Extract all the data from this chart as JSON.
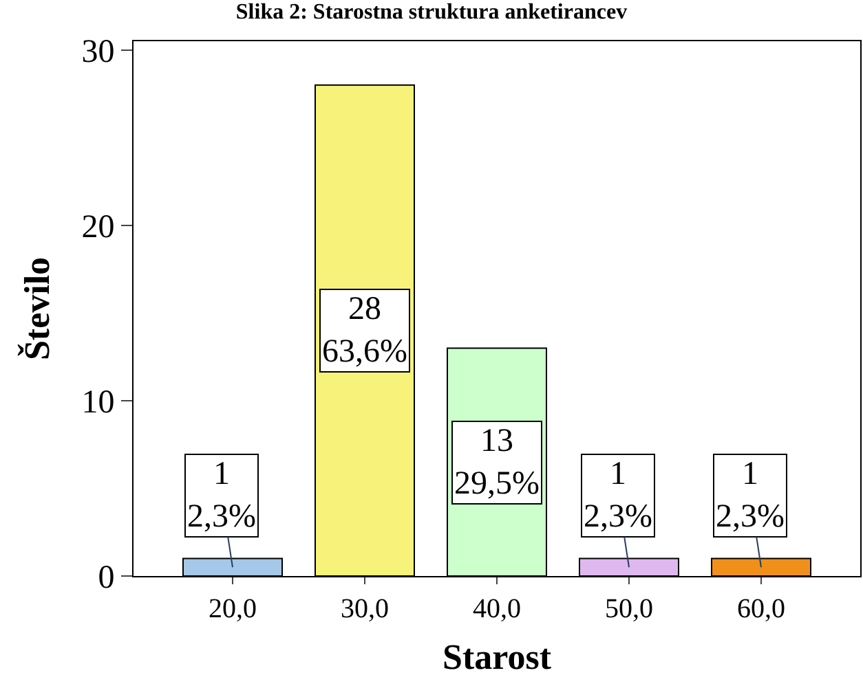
{
  "chart_data": {
    "type": "bar",
    "title": "Slika 2: Starostna struktura anketirancev",
    "xlabel": "Starost",
    "ylabel": "Število",
    "categories": [
      "20,0",
      "30,0",
      "40,0",
      "50,0",
      "60,0"
    ],
    "values": [
      1,
      28,
      13,
      1,
      1
    ],
    "colors": [
      "#a6c8e8",
      "#f7f27a",
      "#ccffcc",
      "#e0b8f0",
      "#f0901a"
    ],
    "value_labels": [
      "1\n2,3%",
      "28\n63,6%",
      "13\n29,5%",
      "1\n2,3%",
      "1\n2,3%"
    ],
    "ylim": [
      0,
      30.5
    ],
    "yticks": [
      0,
      10,
      20,
      30
    ],
    "legend": false
  }
}
